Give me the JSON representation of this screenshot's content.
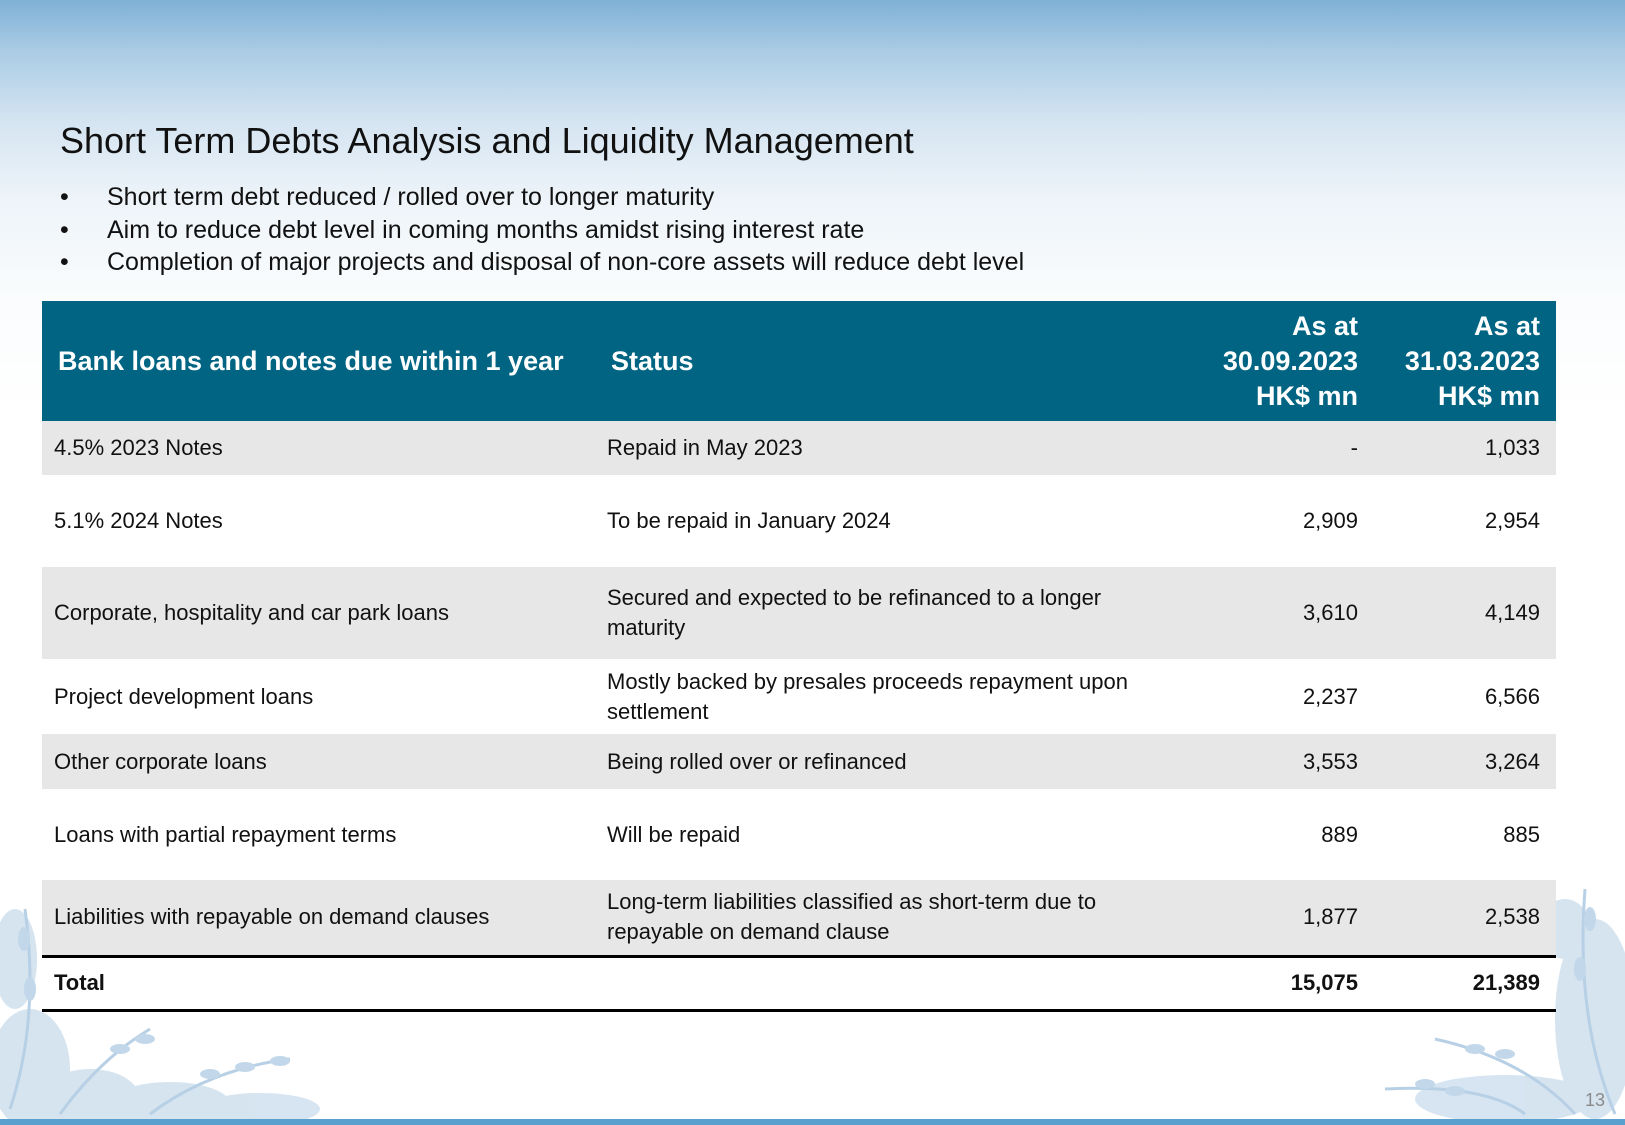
{
  "slide": {
    "title": "Short Term Debts Analysis and Liquidity Management",
    "bullet_symbol": "•",
    "bullets": [
      "Short term debt reduced / rolled over to longer maturity",
      "Aim to reduce debt level in coming months amidst rising interest rate",
      "Completion of major projects and disposal of non-core assets will reduce debt level"
    ],
    "page_number": "13"
  },
  "table": {
    "headers": {
      "name": "Bank loans and notes due within 1 year",
      "status": "Status",
      "col1": "As at 30.09.2023 HK$ mn",
      "col2": "As at 31.03.2023 HK$ mn"
    },
    "rows": [
      {
        "name": "4.5% 2023 Notes",
        "status": "Repaid in May 2023",
        "v1": "-",
        "v2": "1,033"
      },
      {
        "name": "5.1% 2024 Notes",
        "status": "To be repaid in January 2024",
        "v1": "2,909",
        "v2": "2,954"
      },
      {
        "name": "Corporate, hospitality and car park loans",
        "status": "Secured and expected to be refinanced to a longer maturity",
        "v1": "3,610",
        "v2": "4,149"
      },
      {
        "name": "Project development loans",
        "status": "Mostly backed by presales proceeds repayment upon settlement",
        "v1": "2,237",
        "v2": "6,566"
      },
      {
        "name": "Other corporate loans",
        "status": "Being rolled over or refinanced",
        "v1": "3,553",
        "v2": "3,264"
      },
      {
        "name": "Loans with partial repayment terms",
        "status": "Will be repaid",
        "v1": "889",
        "v2": "885"
      },
      {
        "name": "Liabilities with repayable on demand clauses",
        "status": "Long-term liabilities classified as short-term due to repayable on demand clause",
        "v1": "1,877",
        "v2": "2,538"
      }
    ],
    "total": {
      "label": "Total",
      "v1": "15,075",
      "v2": "21,389"
    }
  },
  "colors": {
    "header_bg": "#006482",
    "row_shade": "#e7e7e8",
    "top_gradient": "#7fb1d6",
    "bottom_strip": "#5aa0cf"
  }
}
